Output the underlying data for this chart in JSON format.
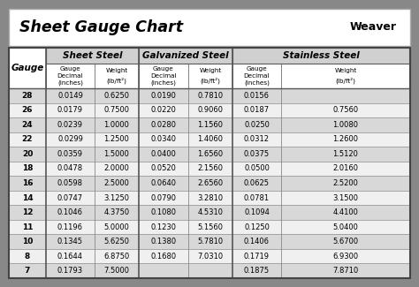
{
  "title": "Sheet Gauge Chart",
  "bg_outer": "#888888",
  "bg_title": "#ffffff",
  "bg_table": "#ffffff",
  "bg_header_section": "#d0d0d0",
  "bg_row_dark": "#d8d8d8",
  "bg_row_light": "#f0f0f0",
  "border_color": "#555555",
  "gauges": [
    28,
    26,
    24,
    22,
    20,
    18,
    16,
    14,
    12,
    11,
    10,
    8,
    7
  ],
  "sheet_steel_decimal": [
    "0.0149",
    "0.0179",
    "0.0239",
    "0.0299",
    "0.0359",
    "0.0478",
    "0.0598",
    "0.0747",
    "0.1046",
    "0.1196",
    "0.1345",
    "0.1644",
    "0.1793"
  ],
  "sheet_steel_weight": [
    "0.6250",
    "0.7500",
    "1.0000",
    "1.2500",
    "1.5000",
    "2.0000",
    "2.5000",
    "3.1250",
    "4.3750",
    "5.0000",
    "5.6250",
    "6.8750",
    "7.5000"
  ],
  "galv_decimal": [
    "0.0190",
    "0.0220",
    "0.0280",
    "0.0340",
    "0.0400",
    "0.0520",
    "0.0640",
    "0.0790",
    "0.1080",
    "0.1230",
    "0.1380",
    "0.1680",
    ""
  ],
  "galv_weight": [
    "0.7810",
    "0.9060",
    "1.1560",
    "1.4060",
    "1.6560",
    "2.1560",
    "2.6560",
    "3.2810",
    "4.5310",
    "5.1560",
    "5.7810",
    "7.0310",
    ""
  ],
  "ss_decimal": [
    "0.0156",
    "0.0187",
    "0.0250",
    "0.0312",
    "0.0375",
    "0.0500",
    "0.0625",
    "0.0781",
    "0.1094",
    "0.1250",
    "0.1406",
    "0.1719",
    "0.1875"
  ],
  "ss_weight": [
    "",
    "0.7560",
    "1.0080",
    "1.2600",
    "1.5120",
    "2.0160",
    "2.5200",
    "3.1500",
    "4.4100",
    "5.0400",
    "5.6700",
    "6.9300",
    "7.8710"
  ],
  "figsize": [
    4.74,
    3.25
  ],
  "dpi": 100
}
